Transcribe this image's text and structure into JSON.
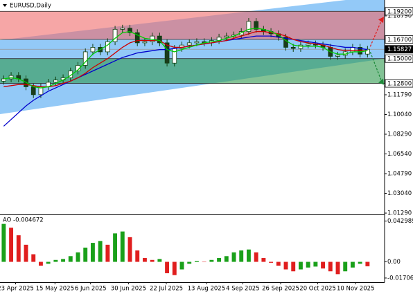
{
  "chart_data": {
    "type": "candlestick",
    "title": "EURUSD,Daily",
    "xlim": [
      -0.5,
      51.3
    ],
    "xticks": [
      {
        "value": 1.6,
        "label": "23 Apr 2025"
      },
      {
        "value": 6.9,
        "label": "15 May 2025"
      },
      {
        "value": 11.7,
        "label": "6 Jun 2025"
      },
      {
        "value": 16.8,
        "label": "30 Jun 2025"
      },
      {
        "value": 21.9,
        "label": "22 Jul 2025"
      },
      {
        "value": 27.3,
        "label": "13 Aug 2025"
      },
      {
        "value": 32.2,
        "label": "4 Sep 2025"
      },
      {
        "value": 37.3,
        "label": "26 Sep 2025"
      },
      {
        "value": 42.3,
        "label": "20 Oct 2025"
      },
      {
        "value": 47.4,
        "label": "10 Nov 2025"
      }
    ],
    "ylim": [
      1.0117,
      1.202
    ],
    "yticks": [
      {
        "value": 1.1879,
        "label": "1.18790"
      },
      {
        "value": 1.1179,
        "label": "1.11790"
      },
      {
        "value": 1.1004,
        "label": "1.10040"
      },
      {
        "value": 1.0829,
        "label": "1.08290"
      },
      {
        "value": 1.0654,
        "label": "1.06540"
      },
      {
        "value": 1.0479,
        "label": "1.04790"
      },
      {
        "value": 1.0304,
        "label": "1.03040"
      },
      {
        "value": 1.0129,
        "label": "1.01290"
      }
    ],
    "bull_color": "#ffffff",
    "bear_color": "#1b3b1b",
    "wick_color": "#0f3f0f",
    "open": [
      1.13,
      1.132,
      1.135,
      1.132,
      1.125,
      1.118,
      1.125,
      1.129,
      1.131,
      1.133,
      1.139,
      1.144,
      1.156,
      1.16,
      1.156,
      1.165,
      1.176,
      1.177,
      1.173,
      1.164,
      1.165,
      1.17,
      1.164,
      1.146,
      1.159,
      1.162,
      1.164,
      1.165,
      1.164,
      1.166,
      1.169,
      1.17,
      1.171,
      1.174,
      1.183,
      1.176,
      1.174,
      1.172,
      1.169,
      1.16,
      1.159,
      1.162,
      1.163,
      1.162,
      1.16,
      1.152,
      1.153,
      1.156,
      1.16,
      1.154
    ],
    "high": [
      1.135,
      1.138,
      1.138,
      1.135,
      1.128,
      1.128,
      1.132,
      1.134,
      1.136,
      1.142,
      1.147,
      1.159,
      1.163,
      1.163,
      1.168,
      1.179,
      1.18,
      1.18,
      1.176,
      1.168,
      1.173,
      1.173,
      1.167,
      1.162,
      1.165,
      1.167,
      1.168,
      1.168,
      1.169,
      1.172,
      1.173,
      1.174,
      1.177,
      1.186,
      1.186,
      1.179,
      1.177,
      1.175,
      1.172,
      1.163,
      1.165,
      1.166,
      1.166,
      1.165,
      1.163,
      1.156,
      1.159,
      1.163,
      1.163,
      1.1613
    ],
    "low": [
      1.127,
      1.129,
      1.129,
      1.122,
      1.115,
      1.115,
      1.122,
      1.126,
      1.128,
      1.13,
      1.136,
      1.141,
      1.153,
      1.153,
      1.153,
      1.162,
      1.173,
      1.17,
      1.161,
      1.161,
      1.162,
      1.161,
      1.143,
      1.143,
      1.156,
      1.159,
      1.161,
      1.161,
      1.161,
      1.163,
      1.166,
      1.167,
      1.168,
      1.171,
      1.173,
      1.171,
      1.169,
      1.166,
      1.157,
      1.156,
      1.156,
      1.159,
      1.159,
      1.157,
      1.149,
      1.149,
      1.15,
      1.153,
      1.151,
      1.151
    ],
    "close": [
      1.132,
      1.135,
      1.132,
      1.125,
      1.118,
      1.125,
      1.129,
      1.131,
      1.133,
      1.139,
      1.144,
      1.156,
      1.16,
      1.156,
      1.165,
      1.176,
      1.177,
      1.173,
      1.164,
      1.165,
      1.17,
      1.164,
      1.146,
      1.159,
      1.162,
      1.164,
      1.165,
      1.164,
      1.166,
      1.169,
      1.17,
      1.171,
      1.174,
      1.183,
      1.176,
      1.174,
      1.172,
      1.169,
      1.16,
      1.159,
      1.162,
      1.163,
      1.162,
      1.16,
      1.152,
      1.153,
      1.156,
      1.16,
      1.154,
      1.1583
    ],
    "overlays": [
      {
        "color": "#0000cc",
        "values": [
          1.09,
          1.096,
          1.102,
          1.108,
          1.113,
          1.117,
          1.121,
          1.124,
          1.127,
          1.13,
          1.133,
          1.136,
          1.139,
          1.142,
          1.145,
          1.148,
          1.151,
          1.153,
          1.155,
          1.156,
          1.157,
          1.158,
          1.158,
          1.159,
          1.16,
          1.161,
          1.162,
          1.163,
          1.164,
          1.165,
          1.166,
          1.167,
          1.168,
          1.169,
          1.17,
          1.17,
          1.17,
          1.169,
          1.168,
          1.167,
          1.166,
          1.165,
          1.164,
          1.163,
          1.162,
          1.161,
          1.16,
          1.16,
          1.159,
          1.158
        ]
      },
      {
        "color": "#cc0000",
        "values": [
          1.125,
          1.126,
          1.127,
          1.127,
          1.126,
          1.125,
          1.125,
          1.126,
          1.128,
          1.13,
          1.133,
          1.137,
          1.142,
          1.146,
          1.15,
          1.155,
          1.16,
          1.164,
          1.166,
          1.166,
          1.166,
          1.166,
          1.162,
          1.16,
          1.16,
          1.161,
          1.162,
          1.163,
          1.164,
          1.165,
          1.166,
          1.168,
          1.17,
          1.172,
          1.174,
          1.174,
          1.173,
          1.172,
          1.17,
          1.167,
          1.165,
          1.164,
          1.163,
          1.162,
          1.16,
          1.158,
          1.157,
          1.157,
          1.157,
          1.157
        ]
      },
      {
        "color": "#00cc00",
        "values": [
          1.132,
          1.133,
          1.132,
          1.129,
          1.125,
          1.124,
          1.125,
          1.128,
          1.131,
          1.135,
          1.14,
          1.147,
          1.154,
          1.158,
          1.162,
          1.168,
          1.173,
          1.174,
          1.171,
          1.168,
          1.167,
          1.166,
          1.158,
          1.156,
          1.158,
          1.16,
          1.162,
          1.164,
          1.165,
          1.166,
          1.168,
          1.17,
          1.173,
          1.176,
          1.177,
          1.176,
          1.174,
          1.171,
          1.166,
          1.162,
          1.161,
          1.161,
          1.161,
          1.16,
          1.156,
          1.154,
          1.154,
          1.156,
          1.156,
          1.157
        ]
      }
    ],
    "channel": {
      "color": "#3a9cf0",
      "upper": [
        1.1664,
        1.206
      ],
      "lower": [
        1.1007,
        1.15
      ]
    },
    "resistance_zone": {
      "color": "#f06a6a",
      "top": {
        "value": 1.192,
        "label": "1.19200"
      },
      "bottom": {
        "value": 1.167,
        "label": "1.16700"
      }
    },
    "support_zone": {
      "color": "#2e9a4e",
      "top": {
        "value": 1.15,
        "label": "1.15000"
      },
      "bottom": {
        "value": 1.128,
        "label": "1.12800"
      }
    },
    "current_price": {
      "value": 1.15827,
      "label": "1.15827"
    },
    "indicator": {
      "label": "AO -0.004672",
      "ylim": [
        -0.0215,
        0.0485
      ],
      "yticks": [
        0.042989,
        {
          "value": 0,
          "label": "0.00"
        },
        -0.017064
      ],
      "up_color": "#1aa01a",
      "down_color": "#e01e1e",
      "values": [
        0.04,
        0.036,
        0.028,
        0.018,
        0.008,
        -0.004,
        -0.002,
        0.002,
        0.003,
        0.006,
        0.01,
        0.015,
        0.02,
        0.022,
        0.018,
        0.03,
        0.032,
        0.026,
        0.012,
        0.004,
        0.002,
        0.003,
        -0.012,
        -0.014,
        -0.008,
        -0.002,
        0.001,
        0.0,
        0.002,
        0.004,
        0.006,
        0.01,
        0.012,
        0.013,
        0.01,
        0.004,
        -0.001,
        -0.004,
        -0.008,
        -0.01,
        -0.008,
        -0.006,
        -0.005,
        -0.007,
        -0.01,
        -0.013,
        -0.01,
        -0.006,
        -0.002,
        -0.004672
      ]
    }
  }
}
